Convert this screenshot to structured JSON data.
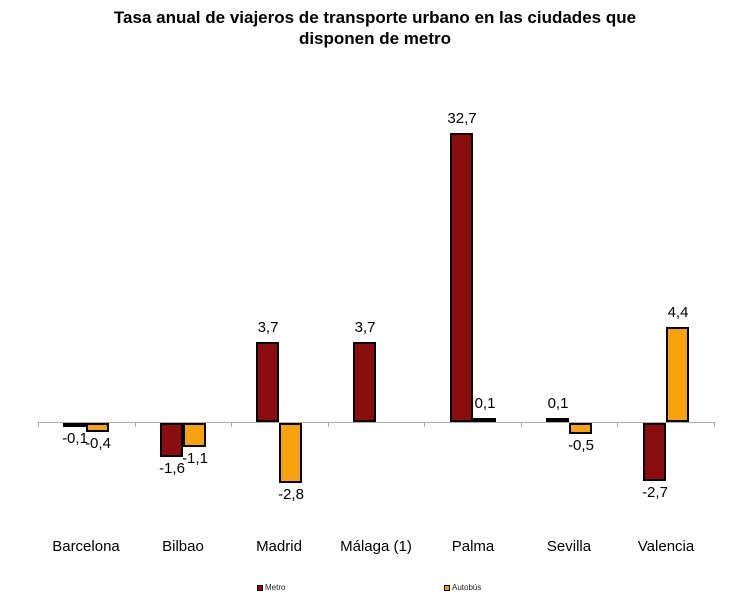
{
  "chart_data": {
    "type": "bar",
    "title": "Tasa anual de viajeros de transporte urbano en las ciudades que disponen de metro",
    "categories": [
      "Barcelona",
      "Bilbao",
      "Madrid",
      "Málaga (1)",
      "Palma",
      "Sevilla",
      "Valencia"
    ],
    "series": [
      {
        "name": "Metro",
        "color": "#8B0E0E",
        "values": [
          -0.1,
          -1.6,
          3.7,
          3.7,
          32.7,
          0.1,
          -2.7
        ],
        "labels": [
          "-0,1",
          "-1,6",
          "3,7",
          "3,7",
          "32,7",
          "0,1",
          "-2,7"
        ]
      },
      {
        "name": "Autobús",
        "color": "#FAA10E",
        "values": [
          -0.4,
          -1.1,
          -2.8,
          null,
          0.1,
          -0.5,
          4.4
        ],
        "labels": [
          "-0,4",
          "-1,1",
          "-2,8",
          null,
          "0,1",
          "-0,5",
          "4,4"
        ]
      }
    ],
    "xlabel": "",
    "ylabel": "",
    "grid": false,
    "legend_position": "bottom",
    "baseline": 0,
    "axis_tick_labels": [],
    "note": "Palma Metro bar drawn clipped in source chart"
  }
}
